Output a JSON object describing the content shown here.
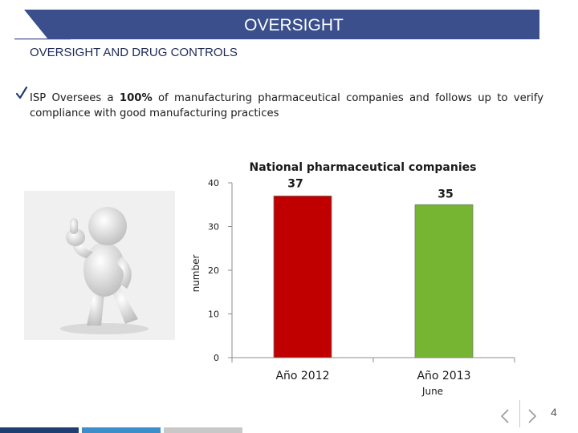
{
  "header": {
    "title": "OVERSIGHT",
    "subtitle": "OVERSIGHT AND DRUG CONTROLS",
    "banner_color": "#3a4f8c"
  },
  "bullet": {
    "icon": "checkmark-icon",
    "text_before": "ISP Oversees a ",
    "text_bold": "100%",
    "text_after": " of manufacturing pharmaceutical companies and follows up to verify compliance with  good manufacturing practices"
  },
  "illustration": {
    "description_icon": "thumbs-up-figure"
  },
  "chart_data": {
    "type": "bar",
    "title": "National pharmaceutical companies",
    "ylabel": "number",
    "xlabel": "",
    "ylim": [
      0,
      40
    ],
    "yticks": [
      "0",
      "10",
      "20",
      "30",
      "40"
    ],
    "categories": [
      "Año 2012",
      "Año 2013"
    ],
    "category_notes": [
      "",
      "June"
    ],
    "values": [
      37,
      35
    ],
    "value_labels": [
      "37",
      "35"
    ],
    "colors": [
      "#c00000",
      "#76b531"
    ],
    "grid": false,
    "legend": "none"
  },
  "footer": {
    "page_number": "4",
    "prev_icon": "chevron-left-icon",
    "next_icon": "chevron-right-icon",
    "bar_colors": [
      "#1f3f73",
      "#3b8ec9",
      "#c8c8c8"
    ]
  }
}
